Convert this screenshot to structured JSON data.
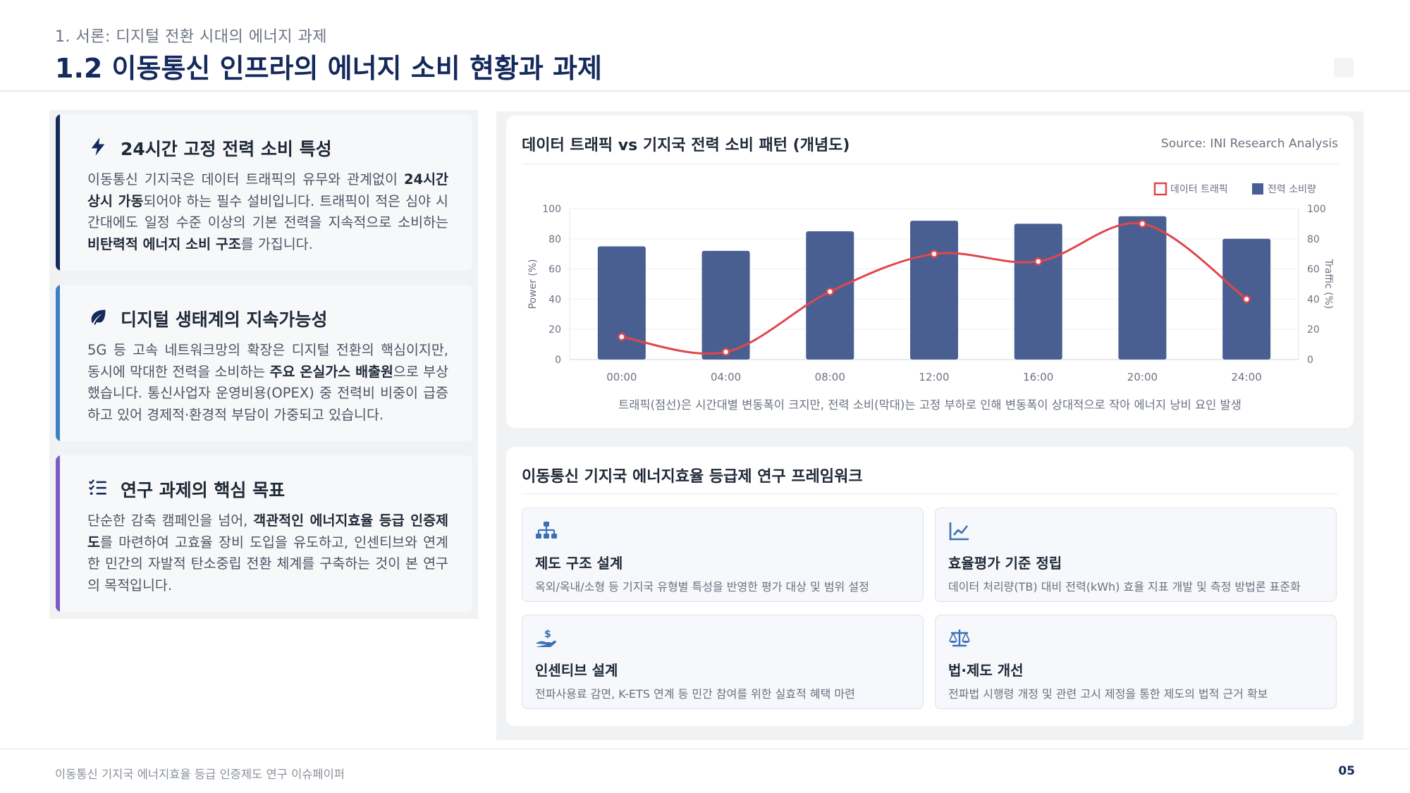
{
  "header": {
    "section": "1. 서론: 디지털 전환 시대의 에너지 과제",
    "title": "1.2 이동통신 인프라의 에너지 소비 현황과 과제"
  },
  "cards": [
    {
      "title": "24시간 고정 전력 소비 특성",
      "icon": "bolt-icon",
      "color": "#152a5c",
      "body_parts": [
        {
          "t": "이동통신 기지국은 데이터 트래픽의 유무와 관계없이 "
        },
        {
          "t": "24시간 상시 가동",
          "b": true
        },
        {
          "t": "되어야 하는 필수 설비입니다. 트래픽이 적은 심야 시간대에도 일정 수준 이상의 기본 전력을 지속적으로 소비하는 "
        },
        {
          "t": "비탄력적 에너지 소비 구조",
          "b": true
        },
        {
          "t": "를 가집니다."
        }
      ]
    },
    {
      "title": "디지털 생태계의 지속가능성",
      "icon": "leaf-icon",
      "color": "#3b82c4",
      "body_parts": [
        {
          "t": "5G 등 고속 네트워크망의 확장은 디지털 전환의 핵심이지만, 동시에 막대한 전력을 소비하는 "
        },
        {
          "t": "주요 온실가스 배출원",
          "b": true
        },
        {
          "t": "으로 부상했습니다. 통신사업자 운영비용(OPEX) 중 전력비 비중이 급증하고 있어 경제적·환경적 부담이 가중되고 있습니다."
        }
      ]
    },
    {
      "title": "연구 과제의 핵심 목표",
      "icon": "checklist-icon",
      "color": "#7c5cc4",
      "body_parts": [
        {
          "t": "단순한 감축 캠페인을 넘어, "
        },
        {
          "t": "객관적인 에너지효율 등급 인증제도",
          "b": true
        },
        {
          "t": "를 마련하여 고효율 장비 도입을 유도하고, 인센티브와 연계한 민간의 자발적 탄소중립 전환 체계를 구축하는 것이 본 연구의 목적입니다."
        }
      ]
    }
  ],
  "chart_section": {
    "title": "데이터 트래픽 vs 기지국 전력 소비 패턴 (개념도)",
    "source": "Source: INI Research Analysis",
    "caption": "트래픽(점선)은 시간대별 변동폭이 크지만, 전력 소비(막대)는 고정 부하로 인해 변동폭이 상대적으로 작아 에너지 낭비 요인 발생"
  },
  "chart_data": {
    "type": "bar+line",
    "categories": [
      "00:00",
      "04:00",
      "08:00",
      "12:00",
      "16:00",
      "20:00",
      "24:00"
    ],
    "series": [
      {
        "name": "전력 소비량",
        "type": "bar",
        "axis": "left",
        "color": "#4a5f91",
        "values": [
          75,
          72,
          85,
          92,
          90,
          95,
          80
        ]
      },
      {
        "name": "데이터 트래픽",
        "type": "line",
        "axis": "right",
        "color": "#e0474c",
        "values": [
          15,
          5,
          45,
          70,
          65,
          90,
          40
        ]
      }
    ],
    "ylabel": "Power (%)",
    "y2label": "Traffic (%)",
    "ylim": [
      0,
      100
    ],
    "yticks": [
      0,
      20,
      40,
      60,
      80,
      100
    ],
    "grid": true,
    "legend": "top-right"
  },
  "framework": {
    "title": "이동통신 기지국 에너지효율 등급제 연구 프레임워크",
    "items": [
      {
        "icon": "hierarchy-icon",
        "title": "제도 구조 설계",
        "desc": "옥외/옥내/소형 등 기지국 유형별 특성을 반영한 평가 대상 및 범위 설정"
      },
      {
        "icon": "chart-line-icon",
        "title": "효율평가 기준 정립",
        "desc": "데이터 처리량(TB) 대비 전력(kWh) 효율 지표 개발 및 측정 방법론 표준화"
      },
      {
        "icon": "hand-dollar-icon",
        "title": "인센티브 설계",
        "desc": "전파사용료 감면, K-ETS 연계 등 민간 참여를 위한 실효적 혜택 마련"
      },
      {
        "icon": "balance-scale-icon",
        "title": "법·제도 개선",
        "desc": "전파법 시행령 개정 및 관련 고시 제정을 통한 제도의 법적 근거 확보"
      }
    ]
  },
  "footer": {
    "text": "이동통신 기지국 에너지효율 등급 인증제도 연구 이슈페이퍼",
    "page": "05"
  }
}
